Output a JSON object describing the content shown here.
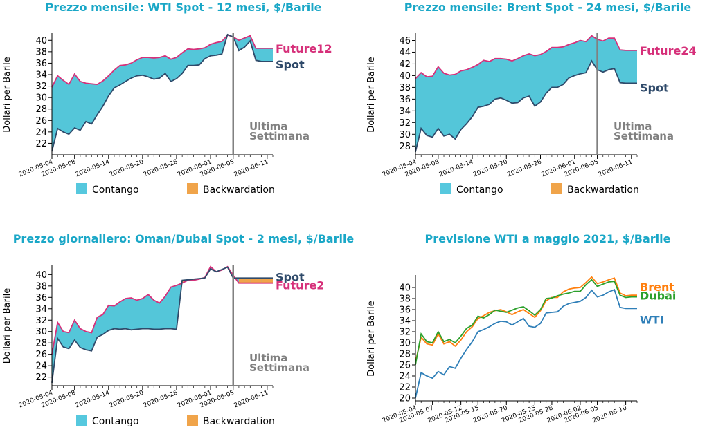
{
  "page": {
    "background": "#ffffff"
  },
  "colors": {
    "title": "#1aa7c7",
    "contango": "#29b8d0",
    "contango_legend": "#56c8de",
    "backwardation": "#f0a44a",
    "future": "#d6307a",
    "spot": "#2f4a6a",
    "vline": "#808080",
    "wti": "#2f7fb8",
    "dubai": "#2ca02c",
    "brent": "#ff7f0e"
  },
  "chart_data": [
    {
      "type": "area",
      "title": "Prezzo mensile: WTI Spot - 12 mesi, $/Barile",
      "ylabel": "Dollari per Barile",
      "ylim": [
        20,
        41
      ],
      "yticks": [
        22,
        24,
        26,
        28,
        30,
        32,
        34,
        36,
        38,
        40
      ],
      "xlim": [
        "2020-05-04",
        "2020-06-12"
      ],
      "xticks": [
        "2020-05-04",
        "2020-05-08",
        "2020-05-14",
        "2020-05-20",
        "2020-05-26",
        "2020-06-01",
        "2020-06-05",
        "2020-06-11"
      ],
      "x": [
        "2020-05-04",
        "2020-05-05",
        "2020-05-06",
        "2020-05-07",
        "2020-05-08",
        "2020-05-09",
        "2020-05-10",
        "2020-05-11",
        "2020-05-12",
        "2020-05-13",
        "2020-05-14",
        "2020-05-15",
        "2020-05-16",
        "2020-05-17",
        "2020-05-18",
        "2020-05-19",
        "2020-05-20",
        "2020-05-21",
        "2020-05-22",
        "2020-05-23",
        "2020-05-24",
        "2020-05-25",
        "2020-05-26",
        "2020-05-27",
        "2020-05-28",
        "2020-05-29",
        "2020-05-30",
        "2020-05-31",
        "2020-06-01",
        "2020-06-02",
        "2020-06-03",
        "2020-06-04",
        "2020-06-05",
        "2020-06-06",
        "2020-06-07",
        "2020-06-08",
        "2020-06-09",
        "2020-06-10",
        "2020-06-11",
        "2020-06-12"
      ],
      "series": [
        {
          "name": "Future12",
          "color_key": "future",
          "values": [
            31.8,
            33.8,
            33.0,
            32.3,
            34.1,
            32.8,
            32.5,
            32.4,
            32.3,
            32.9,
            33.8,
            34.8,
            35.6,
            35.7,
            36.0,
            36.6,
            37.0,
            37.0,
            36.9,
            37.0,
            37.3,
            36.7,
            37.0,
            37.8,
            38.5,
            38.4,
            38.5,
            38.7,
            39.3,
            39.6,
            39.8,
            40.9,
            40.6,
            40.0,
            40.4,
            40.8,
            38.6,
            38.6,
            38.6,
            38.6
          ]
        },
        {
          "name": "Spot",
          "color_key": "spot",
          "values": [
            20.6,
            24.6,
            24.0,
            23.6,
            24.7,
            24.3,
            25.8,
            25.4,
            27.0,
            28.5,
            30.3,
            31.7,
            32.2,
            32.8,
            33.4,
            33.8,
            33.9,
            33.6,
            33.2,
            33.4,
            34.2,
            32.8,
            33.3,
            34.2,
            35.6,
            35.6,
            35.7,
            36.8,
            37.3,
            37.4,
            37.6,
            41.0,
            40.6,
            38.2,
            38.8,
            39.9,
            36.5,
            36.3,
            36.3,
            36.3
          ]
        }
      ],
      "vline_x": "2020-06-05",
      "annotation": [
        "Ultima",
        "Settimana"
      ],
      "legend": [
        "Contango",
        "Backwardation"
      ]
    },
    {
      "type": "area",
      "title": "Prezzo mensile: Brent Spot - 24 mesi, $/Barile",
      "ylabel": "Dollari per Barile",
      "ylim": [
        26.5,
        47
      ],
      "yticks": [
        28,
        30,
        32,
        34,
        36,
        38,
        40,
        42,
        44,
        46
      ],
      "xlim": [
        "2020-05-04",
        "2020-06-12"
      ],
      "xticks": [
        "2020-05-04",
        "2020-05-08",
        "2020-05-14",
        "2020-05-20",
        "2020-05-26",
        "2020-06-01",
        "2020-06-05",
        "2020-06-11"
      ],
      "x": [
        "2020-05-04",
        "2020-05-05",
        "2020-05-06",
        "2020-05-07",
        "2020-05-08",
        "2020-05-09",
        "2020-05-10",
        "2020-05-11",
        "2020-05-12",
        "2020-05-13",
        "2020-05-14",
        "2020-05-15",
        "2020-05-16",
        "2020-05-17",
        "2020-05-18",
        "2020-05-19",
        "2020-05-20",
        "2020-05-21",
        "2020-05-22",
        "2020-05-23",
        "2020-05-24",
        "2020-05-25",
        "2020-05-26",
        "2020-05-27",
        "2020-05-28",
        "2020-05-29",
        "2020-05-30",
        "2020-05-31",
        "2020-06-01",
        "2020-06-02",
        "2020-06-03",
        "2020-06-04",
        "2020-06-05",
        "2020-06-06",
        "2020-06-07",
        "2020-06-08",
        "2020-06-09",
        "2020-06-10",
        "2020-06-11",
        "2020-06-12"
      ],
      "series": [
        {
          "name": "Future24",
          "color_key": "future",
          "values": [
            39.5,
            40.5,
            39.8,
            39.9,
            41.5,
            40.4,
            40.1,
            40.2,
            40.8,
            41.0,
            41.4,
            41.9,
            42.6,
            42.4,
            42.9,
            42.9,
            42.8,
            42.5,
            42.9,
            43.4,
            43.7,
            43.4,
            43.6,
            44.1,
            44.8,
            44.8,
            44.9,
            45.3,
            45.6,
            46.0,
            45.8,
            46.8,
            46.2,
            45.9,
            46.4,
            46.4,
            44.4,
            44.3,
            44.3,
            44.3
          ]
        },
        {
          "name": "Spot",
          "color_key": "spot",
          "values": [
            27.0,
            31.0,
            29.8,
            29.5,
            31.0,
            29.7,
            30.0,
            29.2,
            30.8,
            31.8,
            33.0,
            34.6,
            34.8,
            35.1,
            36.0,
            36.2,
            35.8,
            35.3,
            35.4,
            36.2,
            36.5,
            34.8,
            35.5,
            37.0,
            38.0,
            38.0,
            38.5,
            39.6,
            40.0,
            40.3,
            40.5,
            42.5,
            41.0,
            40.6,
            41.0,
            41.2,
            38.8,
            38.7,
            38.7,
            38.7
          ]
        }
      ],
      "vline_x": "2020-06-05",
      "annotation": [
        "Ultima",
        "Settimana"
      ],
      "legend": [
        "Contango",
        "Backwardation"
      ]
    },
    {
      "type": "area",
      "title": "Prezzo giornaliero: Oman/Dubai Spot - 2 mesi, $/Barile",
      "ylabel": "Dollari per Barile",
      "ylim": [
        20.5,
        41.5
      ],
      "yticks": [
        22,
        24,
        26,
        28,
        30,
        32,
        34,
        36,
        38,
        40
      ],
      "xlim": [
        "2020-05-04",
        "2020-06-12"
      ],
      "xticks": [
        "2020-05-04",
        "2020-05-08",
        "2020-05-14",
        "2020-05-20",
        "2020-05-26",
        "2020-06-01",
        "2020-06-05",
        "2020-06-11"
      ],
      "x": [
        "2020-05-04",
        "2020-05-05",
        "2020-05-06",
        "2020-05-07",
        "2020-05-08",
        "2020-05-09",
        "2020-05-10",
        "2020-05-11",
        "2020-05-12",
        "2020-05-13",
        "2020-05-14",
        "2020-05-15",
        "2020-05-16",
        "2020-05-17",
        "2020-05-18",
        "2020-05-19",
        "2020-05-20",
        "2020-05-21",
        "2020-05-22",
        "2020-05-23",
        "2020-05-24",
        "2020-05-25",
        "2020-05-26",
        "2020-05-27",
        "2020-05-28",
        "2020-05-29",
        "2020-05-30",
        "2020-05-31",
        "2020-06-01",
        "2020-06-02",
        "2020-06-03",
        "2020-06-04",
        "2020-06-05",
        "2020-06-06",
        "2020-06-07",
        "2020-06-08",
        "2020-06-09",
        "2020-06-10",
        "2020-06-11",
        "2020-06-12"
      ],
      "series": [
        {
          "name": "Future2",
          "color_key": "future",
          "values": [
            26.0,
            31.6,
            30.0,
            29.8,
            32.0,
            30.5,
            30.0,
            29.8,
            32.5,
            33.0,
            34.6,
            34.5,
            35.2,
            35.8,
            35.9,
            35.5,
            35.8,
            36.5,
            35.5,
            35.0,
            36.2,
            37.8,
            38.1,
            38.5,
            39.0,
            39.0,
            39.2,
            39.5,
            41.4,
            40.5,
            40.8,
            41.4,
            39.9,
            38.5,
            38.5,
            38.5,
            38.5,
            38.5,
            38.5,
            38.5
          ]
        },
        {
          "name": "Spot",
          "color_key": "spot",
          "values": [
            21.0,
            28.8,
            27.3,
            27.0,
            28.5,
            27.2,
            26.8,
            26.6,
            29.0,
            29.5,
            30.2,
            30.5,
            30.4,
            30.5,
            30.3,
            30.4,
            30.5,
            30.5,
            30.4,
            30.4,
            30.5,
            30.5,
            30.4,
            39.0,
            39.1,
            39.2,
            39.3,
            39.4,
            41.0,
            40.5,
            40.9,
            41.3,
            39.4,
            39.4,
            39.4,
            39.4,
            39.4,
            39.4,
            39.4,
            39.4
          ]
        }
      ],
      "vline_x": "2020-06-05",
      "annotation": [
        "Ultima",
        "Settimana"
      ],
      "legend": [
        "Contango",
        "Backwardation"
      ]
    },
    {
      "type": "line",
      "title": "Previsione WTI a maggio 2021, $/Barile",
      "ylabel": "Dollari per Barile",
      "ylim": [
        19.5,
        42
      ],
      "yticks": [
        20,
        22,
        24,
        26,
        28,
        30,
        32,
        34,
        36,
        38,
        40
      ],
      "xlim": [
        "2020-05-04",
        "2020-06-12"
      ],
      "xticks": [
        "2020-05-04",
        "2020-05-07",
        "2020-05-12",
        "2020-05-15",
        "2020-05-20",
        "2020-05-25",
        "2020-05-28",
        "2020-06-02",
        "2020-06-05",
        "2020-06-10"
      ],
      "x": [
        "2020-05-04",
        "2020-05-05",
        "2020-05-06",
        "2020-05-07",
        "2020-05-08",
        "2020-05-09",
        "2020-05-10",
        "2020-05-11",
        "2020-05-12",
        "2020-05-13",
        "2020-05-14",
        "2020-05-15",
        "2020-05-16",
        "2020-05-17",
        "2020-05-18",
        "2020-05-19",
        "2020-05-20",
        "2020-05-21",
        "2020-05-22",
        "2020-05-23",
        "2020-05-24",
        "2020-05-25",
        "2020-05-26",
        "2020-05-27",
        "2020-05-28",
        "2020-05-29",
        "2020-05-30",
        "2020-05-31",
        "2020-06-01",
        "2020-06-02",
        "2020-06-03",
        "2020-06-04",
        "2020-06-05",
        "2020-06-06",
        "2020-06-07",
        "2020-06-08",
        "2020-06-09",
        "2020-06-10",
        "2020-06-11",
        "2020-06-12"
      ],
      "series": [
        {
          "name": "Brent",
          "color_key": "brent",
          "values": [
            26.5,
            31.0,
            29.8,
            29.6,
            31.6,
            29.8,
            30.2,
            29.4,
            30.5,
            32.0,
            32.9,
            34.4,
            34.9,
            35.5,
            35.8,
            36.0,
            35.6,
            35.1,
            35.6,
            36.0,
            35.3,
            34.6,
            35.8,
            37.6,
            38.2,
            38.2,
            39.2,
            39.7,
            39.9,
            40.0,
            40.9,
            41.9,
            40.7,
            41.0,
            41.4,
            41.7,
            39.0,
            38.5,
            38.6,
            38.6
          ]
        },
        {
          "name": "Dubai",
          "color_key": "dubai",
          "values": [
            26.0,
            31.6,
            30.2,
            30.0,
            32.0,
            30.2,
            30.6,
            30.0,
            31.2,
            32.6,
            33.2,
            34.8,
            34.5,
            35.1,
            35.9,
            35.7,
            35.5,
            35.9,
            36.3,
            36.5,
            35.8,
            35.0,
            36.0,
            38.0,
            38.1,
            38.5,
            38.8,
            39.0,
            39.3,
            39.3,
            40.5,
            41.4,
            40.2,
            40.6,
            41.0,
            41.1,
            38.6,
            38.2,
            38.3,
            38.3
          ]
        },
        {
          "name": "WTI",
          "color_key": "wti",
          "values": [
            20.0,
            24.6,
            24.0,
            23.6,
            24.8,
            24.2,
            25.7,
            25.4,
            27.2,
            28.8,
            30.2,
            32.0,
            32.4,
            32.9,
            33.5,
            33.9,
            33.8,
            33.2,
            33.8,
            34.4,
            33.0,
            32.8,
            33.5,
            35.4,
            35.5,
            35.6,
            36.6,
            37.1,
            37.3,
            37.5,
            38.2,
            39.5,
            38.3,
            38.6,
            39.2,
            39.6,
            36.4,
            36.2,
            36.2,
            36.2
          ]
        }
      ]
    }
  ]
}
